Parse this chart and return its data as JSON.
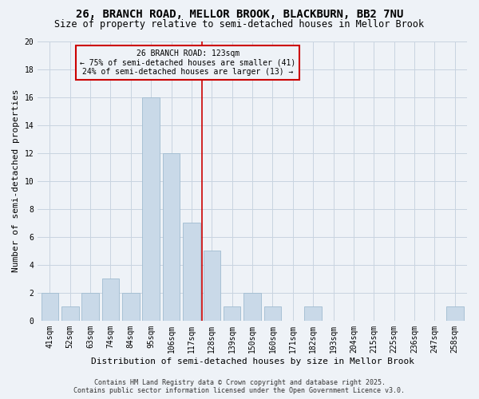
{
  "title1": "26, BRANCH ROAD, MELLOR BROOK, BLACKBURN, BB2 7NU",
  "title2": "Size of property relative to semi-detached houses in Mellor Brook",
  "xlabel": "Distribution of semi-detached houses by size in Mellor Brook",
  "ylabel": "Number of semi-detached properties",
  "categories": [
    "41sqm",
    "52sqm",
    "63sqm",
    "74sqm",
    "84sqm",
    "95sqm",
    "106sqm",
    "117sqm",
    "128sqm",
    "139sqm",
    "150sqm",
    "160sqm",
    "171sqm",
    "182sqm",
    "193sqm",
    "204sqm",
    "215sqm",
    "225sqm",
    "236sqm",
    "247sqm",
    "258sqm"
  ],
  "values": [
    2,
    1,
    2,
    3,
    2,
    16,
    12,
    7,
    5,
    1,
    2,
    1,
    0,
    1,
    0,
    0,
    0,
    0,
    0,
    0,
    1
  ],
  "bar_color": "#c9d9e8",
  "bar_edge_color": "#a0bcd0",
  "vline_x_index": 7.5,
  "vline_color": "#cc0000",
  "ylim": [
    0,
    20
  ],
  "yticks": [
    0,
    2,
    4,
    6,
    8,
    10,
    12,
    14,
    16,
    18,
    20
  ],
  "annotation_title": "26 BRANCH ROAD: 123sqm",
  "annotation_line1": "← 75% of semi-detached houses are smaller (41)",
  "annotation_line2": "24% of semi-detached houses are larger (13) →",
  "annotation_box_color": "#cc0000",
  "footer1": "Contains HM Land Registry data © Crown copyright and database right 2025.",
  "footer2": "Contains public sector information licensed under the Open Government Licence v3.0.",
  "background_color": "#eef2f7",
  "grid_color": "#c8d4e0",
  "title1_fontsize": 10,
  "title2_fontsize": 8.5,
  "ylabel_fontsize": 8,
  "xlabel_fontsize": 8,
  "tick_fontsize": 7,
  "annot_fontsize": 7,
  "footer_fontsize": 6
}
